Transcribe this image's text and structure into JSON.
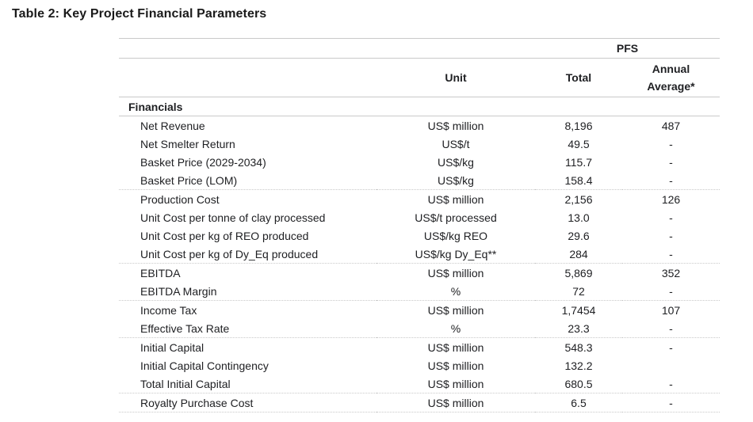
{
  "title": "Table 2: Key Project Financial Parameters",
  "colors": {
    "text": "#202124",
    "divider": "#c9c9c9"
  },
  "table": {
    "group_header": "PFS",
    "columns": [
      "Unit",
      "Total",
      "Annual Average*"
    ],
    "section_header": "Financials",
    "rows": [
      {
        "label": "Net Revenue",
        "unit": "US$ million",
        "total": "8,196",
        "annual": "487",
        "sep": false
      },
      {
        "label": "Net Smelter Return",
        "unit": "US$/t",
        "total": "49.5",
        "annual": "-",
        "sep": false
      },
      {
        "label": "Basket Price (2029-2034)",
        "unit": "US$/kg",
        "total": "115.7",
        "annual": "-",
        "sep": false
      },
      {
        "label": "Basket Price (LOM)",
        "unit": "US$/kg",
        "total": "158.4",
        "annual": "-",
        "sep": false
      },
      {
        "label": "Production Cost",
        "unit": "US$ million",
        "total": "2,156",
        "annual": "126",
        "sep": true
      },
      {
        "label": "Unit Cost per tonne of clay processed",
        "unit": "US$/t processed",
        "total": "13.0",
        "annual": "-",
        "sep": false
      },
      {
        "label": "Unit Cost per kg of REO produced",
        "unit": "US$/kg REO",
        "total": "29.6",
        "annual": "-",
        "sep": false
      },
      {
        "label": "Unit Cost per kg of Dy_Eq produced",
        "unit": "US$/kg Dy_Eq**",
        "total": "284",
        "annual": "-",
        "sep": false
      },
      {
        "label": "EBITDA",
        "unit": "US$ million",
        "total": "5,869",
        "annual": "352",
        "sep": true
      },
      {
        "label": "EBITDA Margin",
        "unit": "%",
        "total": "72",
        "annual": "-",
        "sep": false
      },
      {
        "label": "Income Tax",
        "unit": "US$ million",
        "total": "1,7454",
        "annual": "107",
        "sep": true
      },
      {
        "label": "Effective Tax Rate",
        "unit": "%",
        "total": "23.3",
        "annual": "-",
        "sep": false
      },
      {
        "label": "Initial Capital",
        "unit": "US$ million",
        "total": "548.3",
        "annual": "-",
        "sep": true
      },
      {
        "label": "Initial Capital Contingency",
        "unit": "US$ million",
        "total": "132.2",
        "annual": "",
        "sep": false
      },
      {
        "label": "Total Initial Capital",
        "unit": "US$ million",
        "total": "680.5",
        "annual": "-",
        "sep": false
      },
      {
        "label": "Royalty Purchase Cost",
        "unit": "US$ million",
        "total": "6.5",
        "annual": "-",
        "sep": true
      }
    ]
  }
}
